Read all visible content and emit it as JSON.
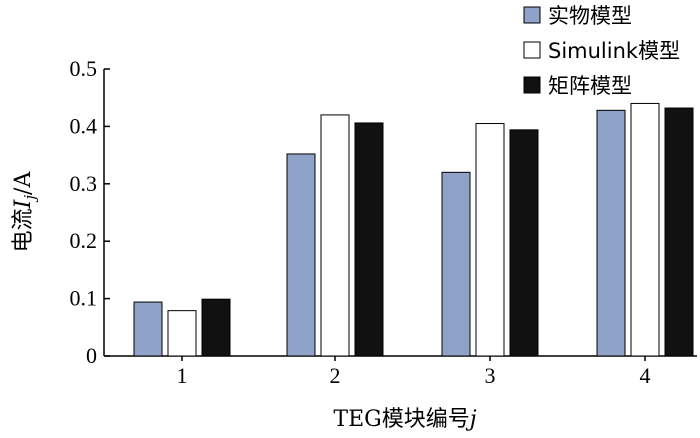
{
  "chart_data": {
    "type": "bar",
    "categories": [
      "1",
      "2",
      "3",
      "4"
    ],
    "series": [
      {
        "name": "实物模型",
        "color": "#8fa2c8",
        "values": [
          0.094,
          0.352,
          0.32,
          0.428
        ]
      },
      {
        "name": "Simulink模型",
        "color": "#ffffff",
        "values": [
          0.079,
          0.42,
          0.405,
          0.44
        ]
      },
      {
        "name": "矩阵模型",
        "color": "#111111",
        "values": [
          0.099,
          0.406,
          0.394,
          0.432
        ]
      }
    ],
    "xlabel_parts": [
      "TEG模块编号",
      "j"
    ],
    "ylabel_parts": [
      "电流",
      "I",
      "j",
      "/A"
    ],
    "yticks": [
      "0",
      "0.1",
      "0.2",
      "0.3",
      "0.4",
      "0.5"
    ],
    "ylim": [
      0,
      0.5
    ],
    "legend_position": "top-right",
    "grid": false
  }
}
